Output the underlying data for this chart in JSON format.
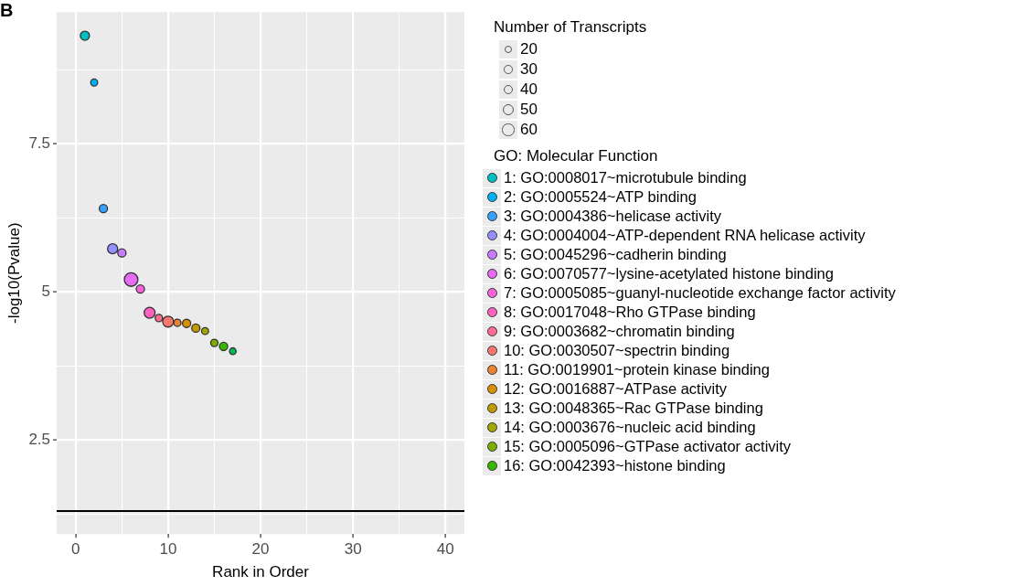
{
  "chart_data": {
    "type": "bubble",
    "xlabel": "Rank in Order",
    "ylabel": "-log10(Pvalue)",
    "legend_title": "GO: Molecular Function",
    "annotations": [
      "B",
      "Number of Transcripts"
    ],
    "xlim": [
      -2.05,
      42.05
    ],
    "xticks": [
      0,
      {
        "value": 5,
        "label": null
      },
      10,
      {
        "value": 15,
        "label": null
      },
      20,
      {
        "value": 25,
        "label": null
      },
      30,
      {
        "value": 35,
        "label": null
      },
      40
    ],
    "ylim": [
      0.91,
      9.73
    ],
    "yticks": [
      {
        "value": 1.25,
        "label": null
      },
      2.5,
      {
        "value": 3.75,
        "label": null
      },
      5,
      {
        "value": 6.25,
        "label": null
      },
      7.5,
      {
        "value": 8.75,
        "label": null
      }
    ],
    "grid": true,
    "legend": "right",
    "marker": "circle",
    "size_legend": [
      20,
      30,
      40,
      50,
      60
    ],
    "ref_lines": [
      {
        "axis": "y",
        "value": 1.3,
        "color": "#000000"
      }
    ],
    "series": [
      {
        "name": "1: GO:0008017~microtubule binding",
        "color": "#00BFC4",
        "x": [
          1
        ],
        "values": [
          9.33
        ],
        "sizes": [
          33
        ]
      },
      {
        "name": "2: GO:0005524~ATP binding",
        "color": "#00B0F6",
        "x": [
          2
        ],
        "values": [
          8.54
        ],
        "sizes": [
          18
        ]
      },
      {
        "name": "3: GO:0004386~helicase activity",
        "color": "#35A2FF",
        "x": [
          3
        ],
        "values": [
          6.41
        ],
        "sizes": [
          26
        ]
      },
      {
        "name": "4: GO:0004004~ATP-dependent RNA helicase activity",
        "color": "#9590FF",
        "x": [
          4
        ],
        "values": [
          5.73
        ],
        "sizes": [
          40
        ]
      },
      {
        "name": "5: GO:0045296~cadherin binding",
        "color": "#C77CFF",
        "x": [
          5
        ],
        "values": [
          5.66
        ],
        "sizes": [
          26
        ]
      },
      {
        "name": "6: GO:0070577~lysine-acetylated histone binding",
        "color": "#E76BF3",
        "x": [
          6
        ],
        "values": [
          5.21
        ],
        "sizes": [
          75
        ]
      },
      {
        "name": "7: GO:0005085~guanyl-nucleotide exchange factor activity",
        "color": "#FA62DB",
        "x": [
          7
        ],
        "values": [
          5.05
        ],
        "sizes": [
          26
        ]
      },
      {
        "name": "8: GO:0017048~Rho GTPase binding",
        "color": "#FF62BC",
        "x": [
          8
        ],
        "values": [
          4.65
        ],
        "sizes": [
          48
        ]
      },
      {
        "name": "9: GO:0003682~chromatin binding",
        "color": "#FF6C91",
        "x": [
          9
        ],
        "values": [
          4.56
        ],
        "sizes": [
          20
        ]
      },
      {
        "name": "10: GO:0030507~spectrin binding",
        "color": "#F8766D",
        "x": [
          10
        ],
        "values": [
          4.5
        ],
        "sizes": [
          48
        ]
      },
      {
        "name": "11: GO:0019901~protein kinase binding",
        "color": "#EA8331",
        "x": [
          11
        ],
        "values": [
          4.48
        ],
        "sizes": [
          20
        ]
      },
      {
        "name": "12: GO:0016887~ATPase activity",
        "color": "#D89000",
        "x": [
          12
        ],
        "values": [
          4.47
        ],
        "sizes": [
          26
        ]
      },
      {
        "name": "13: GO:0048365~Rac GTPase binding",
        "color": "#C09B00",
        "x": [
          13
        ],
        "values": [
          4.39
        ],
        "sizes": [
          26
        ]
      },
      {
        "name": "14: GO:0003676~nucleic acid binding",
        "color": "#A3A500",
        "x": [
          14
        ],
        "values": [
          4.34
        ],
        "sizes": [
          18
        ]
      },
      {
        "name": "15: GO:0005096~GTPase activator activity",
        "color": "#7CAE00",
        "x": [
          15
        ],
        "values": [
          4.14
        ],
        "sizes": [
          20
        ]
      },
      {
        "name": "16: GO:0042393~histone binding",
        "color": "#39B600",
        "x": [
          16
        ],
        "values": [
          4.08
        ],
        "sizes": [
          26
        ]
      },
      {
        "color": "#00BB4E",
        "x": [
          17
        ],
        "values": [
          4.0
        ],
        "sizes": [
          16
        ]
      }
    ]
  }
}
